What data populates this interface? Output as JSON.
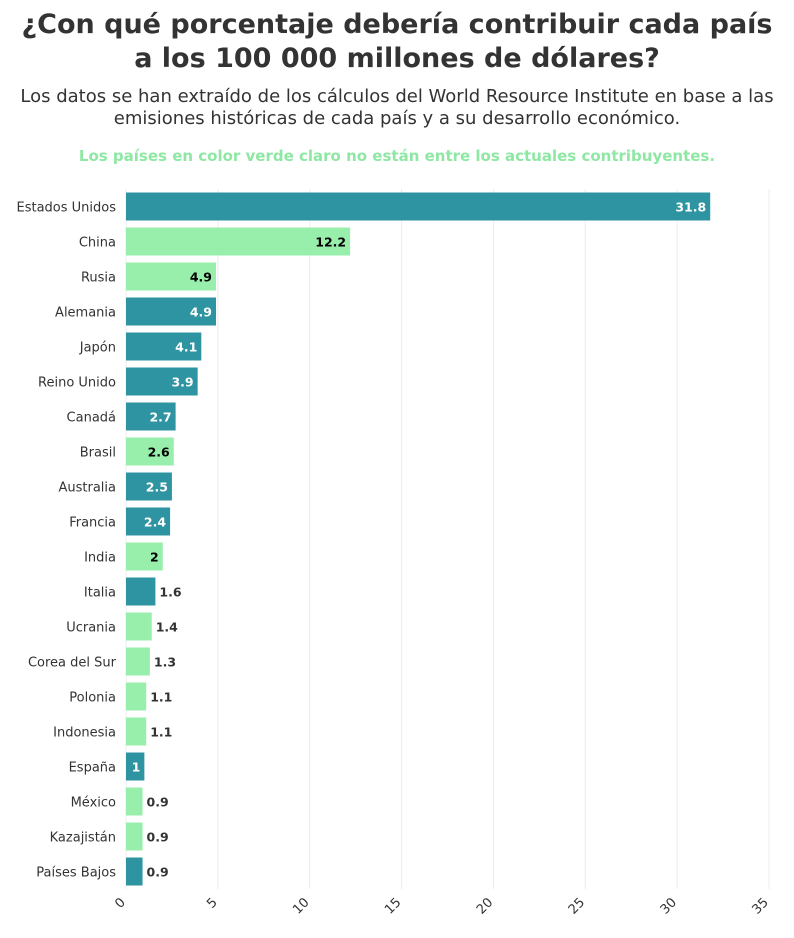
{
  "title": "¿Con qué porcentaje debería contribuir cada país a los 100 000 millones de dólares?",
  "subtitle": "Los datos se han extraído de los cálculos del World Resource Institute en base a las emisiones históricas de cada país y a su desarrollo económico.",
  "note": "Los países en color verde claro no están entre los actuales contribuyentes.",
  "colors": {
    "contributor": "#2e94a1",
    "non_contributor": "#98eeab",
    "grid": "#ececec",
    "text": "#333333",
    "note": "#8ee8a4"
  },
  "chart_data": {
    "type": "bar",
    "orientation": "horizontal",
    "categories": [
      "Estados Unidos",
      "China",
      "Rusia",
      "Alemania",
      "Japón",
      "Reino Unido",
      "Canadá",
      "Brasil",
      "Australia",
      "Francia",
      "India",
      "Italia",
      "Ucrania",
      "Corea del Sur",
      "Polonia",
      "Indonesia",
      "España",
      "México",
      "Kazajistán",
      "Países Bajos"
    ],
    "values": [
      31.8,
      12.2,
      4.9,
      4.9,
      4.1,
      3.9,
      2.7,
      2.6,
      2.5,
      2.4,
      2,
      1.6,
      1.4,
      1.3,
      1.1,
      1.1,
      1,
      0.9,
      0.9,
      0.9
    ],
    "value_labels": [
      "31.8",
      "12.2",
      "4.9",
      "4.9",
      "4.1",
      "3.9",
      "2.7",
      "2.6",
      "2.5",
      "2.4",
      "2",
      "1.6",
      "1.4",
      "1.3",
      "1.1",
      "1.1",
      "1",
      "0.9",
      "0.9",
      "0.9"
    ],
    "current_contributor": [
      true,
      false,
      false,
      true,
      true,
      true,
      true,
      false,
      true,
      true,
      false,
      true,
      false,
      false,
      false,
      false,
      true,
      false,
      false,
      true
    ],
    "xlim": [
      0,
      35
    ],
    "xticks": [
      "0",
      "5",
      "10",
      "15",
      "20",
      "25",
      "30",
      "35"
    ],
    "xtick_values": [
      0,
      5,
      10,
      15,
      20,
      25,
      30,
      35
    ],
    "grid": true,
    "xlabel": "",
    "ylabel": ""
  }
}
